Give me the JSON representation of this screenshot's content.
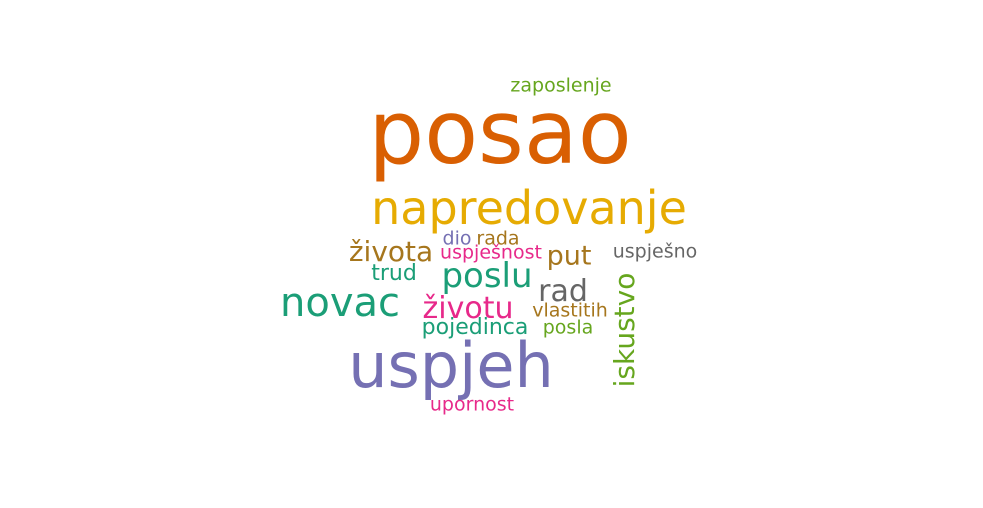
{
  "word_cloud": {
    "words": [
      {
        "text": "posao",
        "color": "#d95f02"
      },
      {
        "text": "uspjeh",
        "color": "#7570b3"
      },
      {
        "text": "napredovanje",
        "color": "#e6ab02"
      },
      {
        "text": "novac",
        "color": "#1b9e77"
      },
      {
        "text": "poslu",
        "color": "#1b9e77"
      },
      {
        "text": "životu",
        "color": "#e7298a"
      },
      {
        "text": "iskustvo",
        "color": "#66a61e"
      },
      {
        "text": "života",
        "color": "#a6761d"
      },
      {
        "text": "rad",
        "color": "#666666"
      },
      {
        "text": "put",
        "color": "#a6761d"
      },
      {
        "text": "pojedinca",
        "color": "#1b9e77"
      },
      {
        "text": "trud",
        "color": "#1b9e77"
      },
      {
        "text": "zaposlenje",
        "color": "#66a61e"
      },
      {
        "text": "uspješno",
        "color": "#666666"
      },
      {
        "text": "uspješnost",
        "color": "#e7298a"
      },
      {
        "text": "vlastitih",
        "color": "#a6761d"
      },
      {
        "text": "posla",
        "color": "#66a61e"
      },
      {
        "text": "upornost",
        "color": "#e7298a"
      },
      {
        "text": "dio",
        "color": "#7570b3"
      },
      {
        "text": "rada",
        "color": "#a6761d"
      }
    ]
  }
}
